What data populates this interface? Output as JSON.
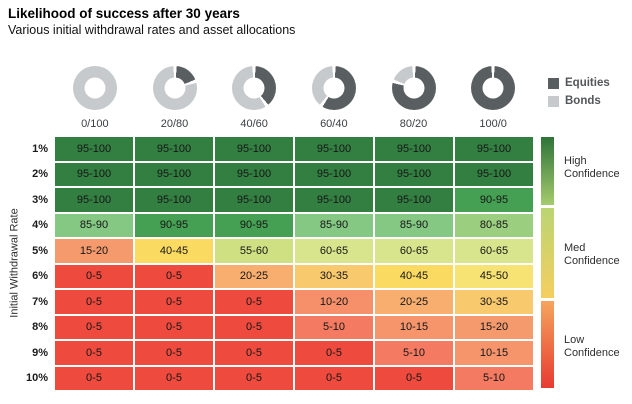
{
  "chart_data": {
    "type": "heatmap",
    "title": "Likelihood of success after 30 years",
    "subtitle": "Various initial withdrawal rates and asset allocations",
    "x_categories": [
      "0/100",
      "20/80",
      "40/60",
      "60/40",
      "80/20",
      "100/0"
    ],
    "x_equities_pct": [
      0,
      20,
      40,
      60,
      80,
      100
    ],
    "ylabel": "Initial Withdrawal Rate",
    "y_categories": [
      "1%",
      "2%",
      "3%",
      "4%",
      "5%",
      "6%",
      "7%",
      "8%",
      "9%",
      "10%"
    ],
    "values_pct_success": [
      [
        "95-100",
        "95-100",
        "95-100",
        "95-100",
        "95-100",
        "95-100"
      ],
      [
        "95-100",
        "95-100",
        "95-100",
        "95-100",
        "95-100",
        "95-100"
      ],
      [
        "95-100",
        "95-100",
        "95-100",
        "95-100",
        "95-100",
        "90-95"
      ],
      [
        "85-90",
        "90-95",
        "90-95",
        "85-90",
        "85-90",
        "80-85"
      ],
      [
        "15-20",
        "40-45",
        "55-60",
        "60-65",
        "60-65",
        "60-65"
      ],
      [
        "0-5",
        "0-5",
        "20-25",
        "30-35",
        "40-45",
        "45-50"
      ],
      [
        "0-5",
        "0-5",
        "0-5",
        "10-20",
        "20-25",
        "30-35"
      ],
      [
        "0-5",
        "0-5",
        "0-5",
        "5-10",
        "10-15",
        "15-20"
      ],
      [
        "0-5",
        "0-5",
        "0-5",
        "0-5",
        "5-10",
        "10-15"
      ],
      [
        "0-5",
        "0-5",
        "0-5",
        "0-5",
        "0-5",
        "5-10"
      ]
    ],
    "palette": {
      "95-100": "#337F41",
      "90-95": "#46A053",
      "85-90": "#84C884",
      "80-85": "#9CCE80",
      "60-65": "#D9E58C",
      "55-60": "#CFE083",
      "45-50": "#F6E374",
      "40-45": "#FBDA62",
      "30-35": "#F9C96E",
      "20-25": "#F8AE6E",
      "15-20": "#F59A6C",
      "10-20": "#F5906B",
      "10-15": "#F6946C",
      "5-10": "#F47A62",
      "0-5": "#EE4A3E"
    },
    "series_legend": [
      {
        "label": "Equities",
        "color": "#595E61"
      },
      {
        "label": "Bonds",
        "color": "#C6CACC"
      }
    ],
    "confidence_scale": [
      {
        "label": "High Confidence",
        "gradient_top": "#2E7339",
        "gradient_bottom": "#A5CB6E"
      },
      {
        "label": "Med Confidence",
        "gradient_top": "#BAD573",
        "gradient_bottom": "#F5CE60"
      },
      {
        "label": "Low Confidence",
        "gradient_top": "#F5A55E",
        "gradient_bottom": "#E73B31"
      }
    ]
  }
}
